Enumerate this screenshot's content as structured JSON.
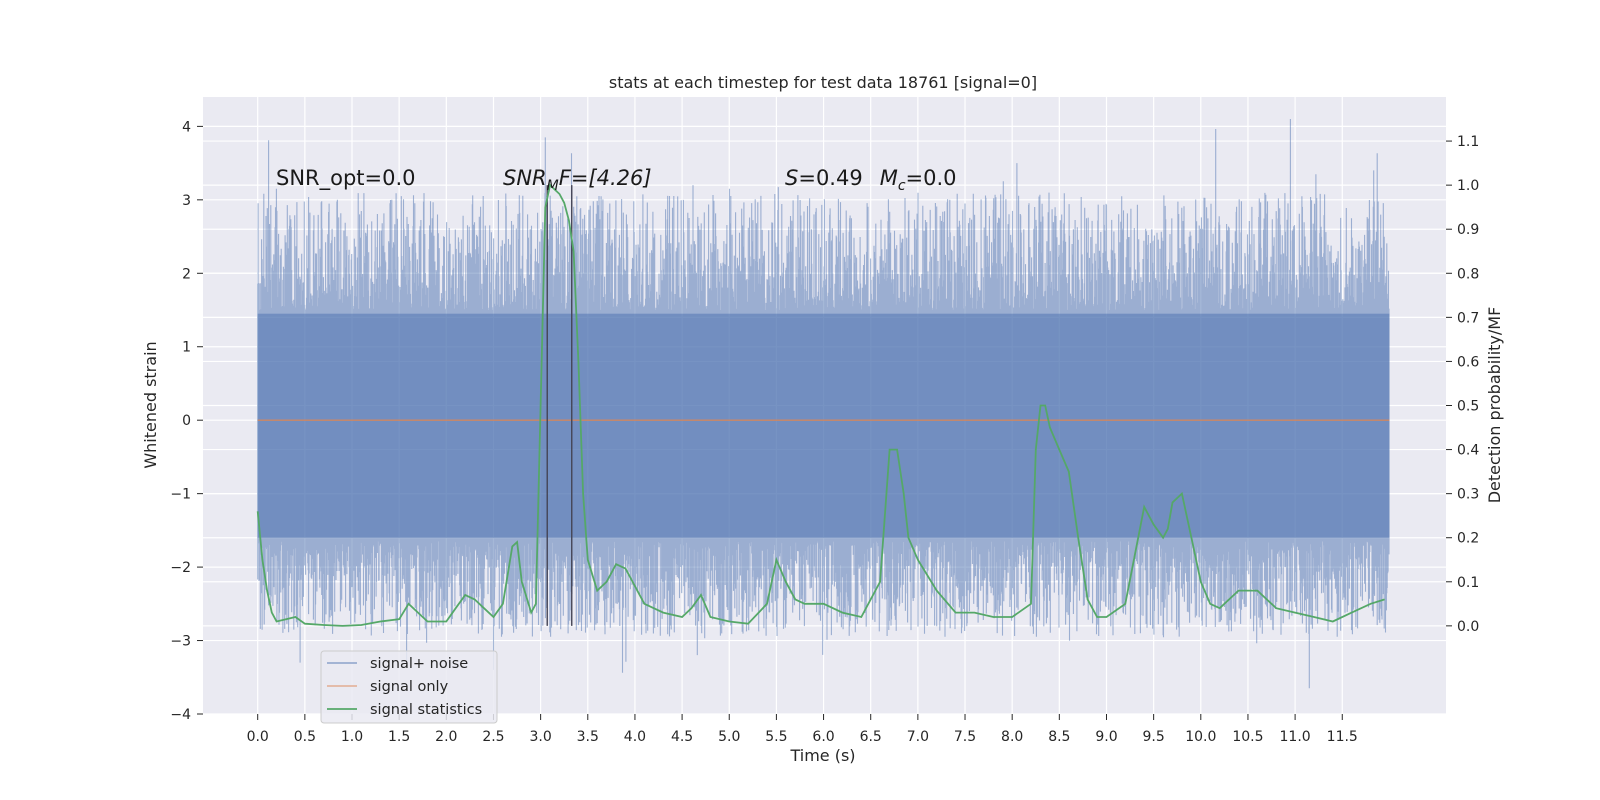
{
  "chart_data": {
    "type": "line",
    "title": "stats at each timestep for test data 18761 [signal=0]",
    "xlabel": "Time (s)",
    "ylabel": "Whitened strain",
    "ylabel_right": "Detection probability/MF",
    "xlim": [
      -0.58,
      12.6
    ],
    "ylim": [
      -4.0,
      4.4
    ],
    "ylim_right": [
      -0.2,
      1.2
    ],
    "x_ticks": [
      "0.0",
      "0.5",
      "1.0",
      "1.5",
      "2.0",
      "2.5",
      "3.0",
      "3.5",
      "4.0",
      "4.5",
      "5.0",
      "5.5",
      "6.0",
      "6.5",
      "7.0",
      "7.5",
      "8.0",
      "8.5",
      "9.0",
      "9.5",
      "10.0",
      "10.5",
      "11.0",
      "11.5"
    ],
    "y_ticks": [
      -4,
      -3,
      -2,
      -1,
      0,
      1,
      2,
      3,
      4
    ],
    "y_ticks_right": [
      "0.0",
      "0.1",
      "0.2",
      "0.3",
      "0.4",
      "0.5",
      "0.6",
      "0.7",
      "0.8",
      "0.9",
      "1.0",
      "1.1"
    ],
    "grid": true,
    "legend_position": "lower-left",
    "annotations": [
      {
        "text": "SNR_opt=0.0",
        "x": 0.2,
        "y": 3.3
      },
      {
        "text": "SNR_MF=[4.26]",
        "x": 2.6,
        "y": 3.3
      },
      {
        "text": "S=0.49   M_c=0.0",
        "x": 5.6,
        "y": 3.3
      }
    ],
    "annotation_display": {
      "a1": "SNR_opt=0.0",
      "a2_main": "SNR",
      "a2_sub": "M",
      "a2_rest": "F=[4.26]",
      "a3_s": "S",
      "a3_val": "=0.49",
      "a3_m": "M",
      "a3_sub": "c",
      "a3_rest": "=0.0"
    },
    "vlines": [
      {
        "x": 3.07,
        "y_range": [
          -2.8,
          3.2
        ]
      },
      {
        "x": 3.33,
        "y_range": [
          -2.8,
          3.2
        ]
      }
    ],
    "series": [
      {
        "name": "signal+ noise",
        "color": "#4c72b0",
        "alpha": 0.5,
        "axis": "left",
        "x_range": [
          0.0,
          12.0
        ],
        "noise_band_y": [
          -1.6,
          1.45
        ],
        "outlier_y_range": [
          -3.65,
          4.1
        ]
      },
      {
        "name": "signal only",
        "color": "#dd8452",
        "axis": "left",
        "x": [
          0.0,
          12.0
        ],
        "y": [
          0.0,
          0.0
        ]
      },
      {
        "name": "signal statistics",
        "color": "#55a868",
        "axis": "right",
        "x": [
          0.0,
          0.05,
          0.1,
          0.15,
          0.2,
          0.3,
          0.4,
          0.5,
          0.7,
          0.9,
          1.1,
          1.3,
          1.5,
          1.6,
          1.7,
          1.8,
          2.0,
          2.1,
          2.2,
          2.3,
          2.4,
          2.5,
          2.6,
          2.7,
          2.75,
          2.8,
          2.9,
          2.95,
          3.0,
          3.05,
          3.1,
          3.15,
          3.2,
          3.25,
          3.3,
          3.35,
          3.4,
          3.45,
          3.5,
          3.6,
          3.7,
          3.8,
          3.9,
          4.1,
          4.3,
          4.5,
          4.6,
          4.7,
          4.8,
          5.0,
          5.2,
          5.4,
          5.5,
          5.6,
          5.7,
          5.8,
          5.9,
          6.0,
          6.2,
          6.4,
          6.6,
          6.7,
          6.78,
          6.85,
          6.9,
          7.0,
          7.2,
          7.4,
          7.6,
          7.8,
          8.0,
          8.2,
          8.25,
          8.3,
          8.35,
          8.4,
          8.5,
          8.6,
          8.7,
          8.8,
          8.9,
          9.0,
          9.2,
          9.4,
          9.5,
          9.6,
          9.65,
          9.7,
          9.8,
          9.9,
          10.0,
          10.1,
          10.2,
          10.4,
          10.6,
          10.8,
          11.0,
          11.2,
          11.4,
          11.6,
          11.8,
          11.95
        ],
        "y": [
          0.26,
          0.15,
          0.08,
          0.03,
          0.01,
          0.015,
          0.02,
          0.005,
          0.002,
          0.0,
          0.002,
          0.01,
          0.015,
          0.05,
          0.03,
          0.01,
          0.01,
          0.04,
          0.07,
          0.06,
          0.04,
          0.02,
          0.05,
          0.18,
          0.19,
          0.1,
          0.03,
          0.05,
          0.5,
          0.95,
          1.0,
          0.99,
          0.98,
          0.96,
          0.92,
          0.85,
          0.6,
          0.3,
          0.15,
          0.08,
          0.1,
          0.14,
          0.13,
          0.05,
          0.03,
          0.02,
          0.04,
          0.07,
          0.02,
          0.01,
          0.005,
          0.05,
          0.15,
          0.1,
          0.06,
          0.05,
          0.05,
          0.05,
          0.03,
          0.02,
          0.1,
          0.4,
          0.4,
          0.3,
          0.2,
          0.15,
          0.08,
          0.03,
          0.03,
          0.02,
          0.02,
          0.05,
          0.4,
          0.5,
          0.5,
          0.45,
          0.4,
          0.35,
          0.2,
          0.06,
          0.02,
          0.02,
          0.05,
          0.27,
          0.23,
          0.2,
          0.22,
          0.28,
          0.3,
          0.2,
          0.1,
          0.05,
          0.04,
          0.08,
          0.08,
          0.04,
          0.03,
          0.02,
          0.01,
          0.03,
          0.05,
          0.06
        ]
      }
    ]
  }
}
